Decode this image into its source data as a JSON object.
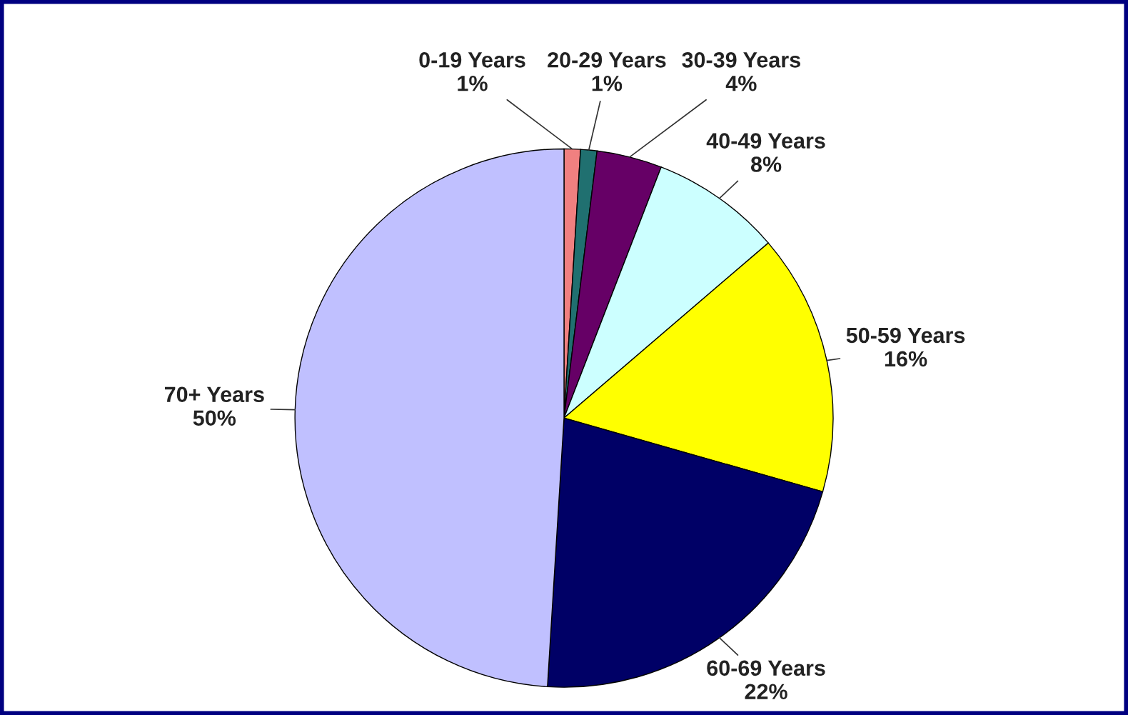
{
  "chart_data": {
    "type": "pie",
    "categories": [
      "0-19 Years",
      "20-29 Years",
      "30-39 Years",
      "40-49 Years",
      "50-59 Years",
      "60-69 Years",
      "70+ Years"
    ],
    "values": [
      1,
      1,
      4,
      8,
      16,
      22,
      50
    ],
    "value_labels": [
      "1%",
      "1%",
      "4%",
      "8%",
      "16%",
      "22%",
      "50%"
    ],
    "colors": [
      "#f08080",
      "#207070",
      "#660066",
      "#ccffff",
      "#ffff00",
      "#000066",
      "#c0c0ff"
    ],
    "legend": false
  }
}
